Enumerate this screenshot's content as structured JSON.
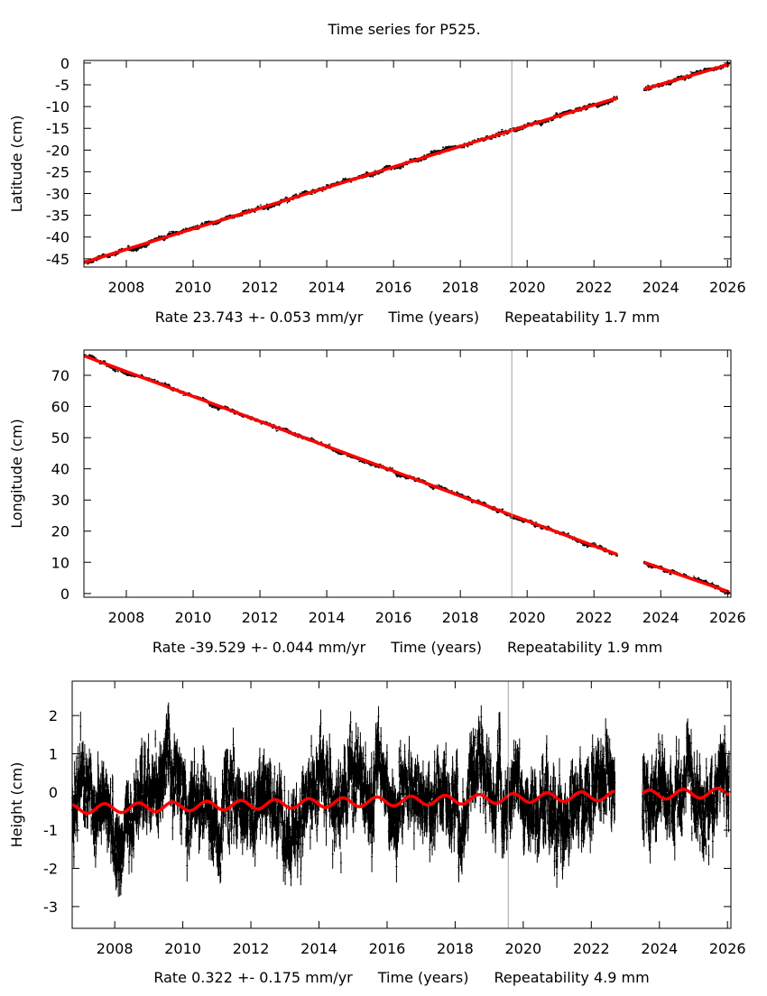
{
  "title": "Time series for P525.",
  "chart_data": [
    {
      "type": "scatter",
      "ylabel": "Latitude (cm)",
      "xlabel": "Time (years)",
      "rate_text": "Rate 23.743 +- 0.053 mm/yr",
      "repeat_text": "Repeatability 1.7 mm",
      "xlim": [
        2006.73,
        2026.1
      ],
      "ylim": [
        -46.9,
        0.6
      ],
      "xticks": [
        2008,
        2010,
        2012,
        2014,
        2016,
        2018,
        2020,
        2022,
        2024,
        2026
      ],
      "yticks": [
        0,
        -5,
        -10,
        -15,
        -20,
        -25,
        -30,
        -35,
        -40,
        -45
      ],
      "event_line": 2019.54,
      "data_gap": [
        2022.7,
        2023.5
      ],
      "model": {
        "start": [
          2006.75,
          -45.8
        ],
        "before_gap": [
          2022.7,
          -8.0
        ],
        "after_gap": [
          2023.5,
          -6.0
        ],
        "end": [
          2026.05,
          -0.3
        ],
        "annual_amplitude": 0.0
      },
      "noise_cm": 0.25,
      "colors": {
        "data": "#000000",
        "model": "#ff0000",
        "event_line": "#a0a0a0"
      }
    },
    {
      "type": "scatter",
      "ylabel": "Longitude (cm)",
      "xlabel": "Time (years)",
      "rate_text": "Rate -39.529 +- 0.044 mm/yr",
      "repeat_text": "Repeatability 1.9 mm",
      "xlim": [
        2006.73,
        2026.1
      ],
      "ylim": [
        -1.2,
        78.1
      ],
      "xticks": [
        2008,
        2010,
        2012,
        2014,
        2016,
        2018,
        2020,
        2022,
        2024,
        2026
      ],
      "yticks": [
        70,
        60,
        50,
        40,
        30,
        20,
        10,
        0
      ],
      "event_line": 2019.54,
      "data_gap": [
        2022.7,
        2023.5
      ],
      "model": {
        "start": [
          2006.75,
          76.2
        ],
        "before_gap": [
          2022.7,
          12.5
        ],
        "after_gap": [
          2023.5,
          10.0
        ],
        "end": [
          2026.05,
          0.5
        ],
        "annual_amplitude": 0.0
      },
      "noise_cm": 0.3,
      "colors": {
        "data": "#000000",
        "model": "#ff0000",
        "event_line": "#a0a0a0"
      }
    },
    {
      "type": "scatter",
      "ylabel": "Height (cm)",
      "xlabel": "Time (years)",
      "rate_text": "Rate 0.322 +- 0.175 mm/yr",
      "repeat_text": "Repeatability 4.9 mm",
      "xlim": [
        2006.75,
        2026.1
      ],
      "ylim": [
        -3.57,
        2.9
      ],
      "xticks": [
        2008,
        2010,
        2012,
        2014,
        2016,
        2018,
        2020,
        2022,
        2024,
        2026
      ],
      "yticks": [
        2,
        1,
        0,
        -1,
        -2,
        -3
      ],
      "event_line": 2019.56,
      "data_gap": [
        2022.7,
        2023.5
      ],
      "model": {
        "start": [
          2006.75,
          -0.45
        ],
        "before_gap": [
          2022.7,
          -0.1
        ],
        "after_gap": [
          2023.5,
          -0.08
        ],
        "end": [
          2026.05,
          -0.02
        ],
        "annual_amplitude": 0.12
      },
      "noise_cm": 0.5,
      "colors": {
        "data": "#000000",
        "model": "#ff0000",
        "event_line": "#a0a0a0"
      }
    }
  ]
}
